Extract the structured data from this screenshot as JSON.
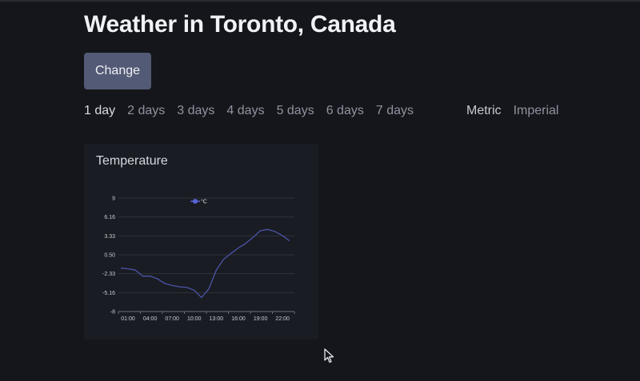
{
  "header": {
    "title": "Weather in Toronto, Canada",
    "change_label": "Change"
  },
  "day_tabs": [
    {
      "label": "1 day",
      "active": true
    },
    {
      "label": "2 days",
      "active": false
    },
    {
      "label": "3 days",
      "active": false
    },
    {
      "label": "4 days",
      "active": false
    },
    {
      "label": "5 days",
      "active": false
    },
    {
      "label": "6 days",
      "active": false
    },
    {
      "label": "7 days",
      "active": false
    }
  ],
  "units": [
    {
      "label": "Metric",
      "active": true
    },
    {
      "label": "Imperial",
      "active": false
    }
  ],
  "card": {
    "title": "Temperature"
  },
  "colors": {
    "line": "#4b54a8",
    "legend_dot": "#5865d6",
    "grid": "#30323a",
    "axis_text": "#c9cbd2"
  },
  "chart_data": {
    "type": "line",
    "title": "Temperature",
    "xlabel": "",
    "ylabel": "",
    "legend": [
      "°C"
    ],
    "legend_position": "top",
    "grid": true,
    "ylim": [
      -8,
      9
    ],
    "y_ticks": [
      "9",
      "6.16",
      "3.33",
      "0.50",
      "-2.33",
      "-5.16",
      "-8"
    ],
    "x_tick_labels": [
      "01:00",
      "04:00",
      "07:00",
      "10:00",
      "13:00",
      "16:00",
      "19:00",
      "22:00"
    ],
    "x": [
      "00:00",
      "01:00",
      "02:00",
      "03:00",
      "04:00",
      "05:00",
      "06:00",
      "07:00",
      "08:00",
      "09:00",
      "10:00",
      "11:00",
      "12:00",
      "13:00",
      "14:00",
      "15:00",
      "16:00",
      "17:00",
      "18:00",
      "19:00",
      "20:00",
      "21:00",
      "22:00",
      "23:00"
    ],
    "series": [
      {
        "name": "°C",
        "values": [
          -1.5,
          -1.6,
          -1.8,
          -2.7,
          -2.7,
          -3.1,
          -3.8,
          -4.1,
          -4.3,
          -4.4,
          -4.8,
          -5.9,
          -4.6,
          -1.8,
          -0.2,
          0.7,
          1.5,
          2.2,
          3.1,
          4.1,
          4.3,
          4.0,
          3.4,
          2.6
        ]
      }
    ]
  }
}
